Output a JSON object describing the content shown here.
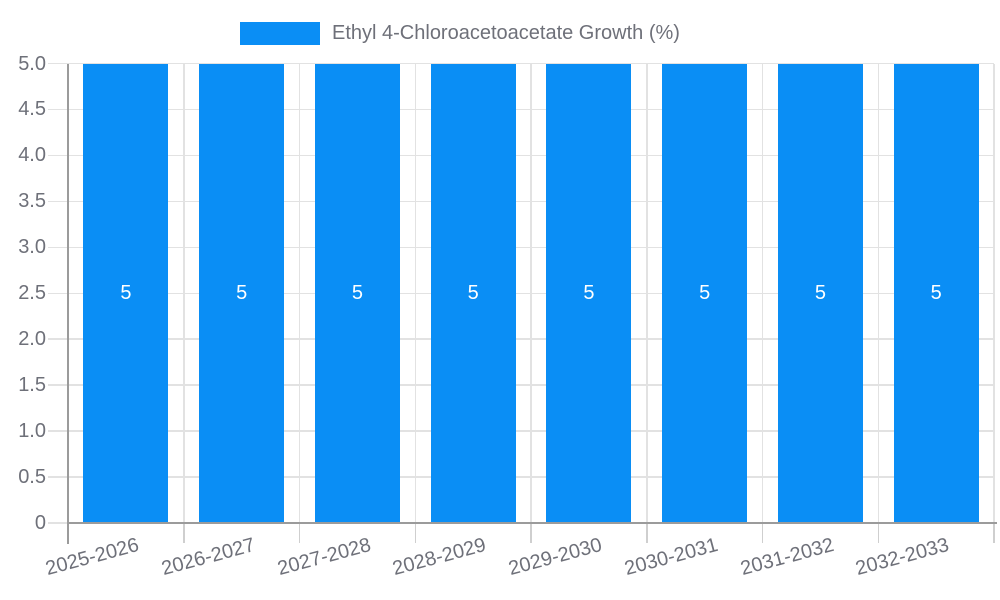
{
  "chart_data": {
    "type": "bar",
    "title": "Ethyl 4-Chloroacetoacetate Growth (%)",
    "xlabel": "",
    "ylabel": "",
    "categories": [
      "2025-2026",
      "2026-2027",
      "2027-2028",
      "2028-2029",
      "2029-2030",
      "2030-2031",
      "2031-2032",
      "2032-2033"
    ],
    "series": [
      {
        "name": "Ethyl 4-Chloroacetoacetate Growth (%)",
        "values": [
          5,
          5,
          5,
          5,
          5,
          5,
          5,
          5
        ]
      }
    ],
    "bar_labels": [
      "5",
      "5",
      "5",
      "5",
      "5",
      "5",
      "5",
      "5"
    ],
    "ylim": [
      0,
      5
    ],
    "y_tick_labels": [
      "0",
      "0.5",
      "1.0",
      "1.5",
      "2.0",
      "2.5",
      "3.0",
      "3.5",
      "4.0",
      "4.5",
      "5.0"
    ],
    "grid": true,
    "legend_position": "top-center",
    "colors": {
      "bar": "#0a8ef5",
      "grid_line": "#e2e2e2",
      "tick_line": "#cfcfcf",
      "axis_line": "#9b9b9b",
      "tick_text": "#6e7079",
      "bar_label_text": "#ffffff",
      "background": "#ffffff"
    }
  }
}
